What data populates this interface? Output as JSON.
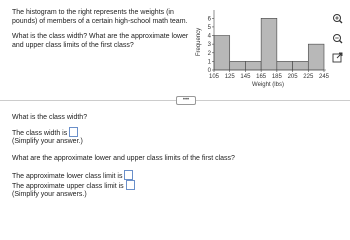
{
  "question": {
    "intro": "The histogram to the right represents the weights (in pounds) of members of a certain high-school math team.",
    "prompt": "What is the class width? What are the approximate lower and upper class limits of the first class?"
  },
  "chart_data": {
    "type": "histogram",
    "xlabel": "Weight (lbs)",
    "ylabel": "Frequency",
    "bins": [
      105,
      125,
      145,
      165,
      185,
      205,
      225,
      245
    ],
    "values": [
      4,
      1,
      1,
      6,
      1,
      1,
      3
    ],
    "color": "#b8b8b8",
    "xlim": [
      105,
      245
    ],
    "ylim": [
      0,
      6.5
    ],
    "xticks": [
      105,
      125,
      145,
      165,
      185,
      205,
      225,
      245
    ],
    "yticks": [
      0,
      1,
      2,
      3,
      4,
      5,
      6
    ]
  },
  "answers": {
    "q1": "What is the class width?",
    "class_width_label": "The class width is",
    "hint1": "(Simplify your answer.)",
    "q2": "What are the approximate lower and upper class limits of the first class?",
    "lower_label": "The approximate lower class limit is",
    "upper_label": "The approximate upper class limit is",
    "hint2": "(Simplify your answers.)"
  }
}
